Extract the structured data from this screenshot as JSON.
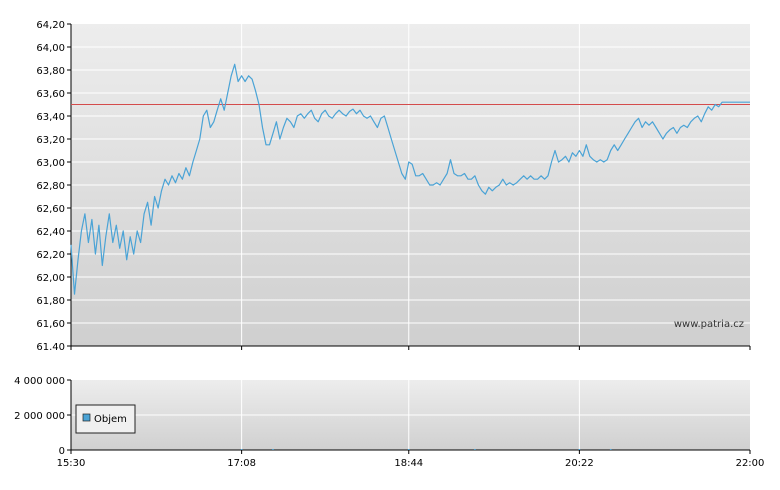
{
  "watermark": "www.patria.cz",
  "chart_data": [
    {
      "type": "line",
      "name": "price",
      "x_ticks": [
        "15:30",
        "17:08",
        "18:44",
        "20:22",
        "22:00"
      ],
      "x_range": [
        "15:30",
        "22:00"
      ],
      "ylim": [
        61.4,
        64.2
      ],
      "y_ticks": [
        "64,20",
        "64,00",
        "63,80",
        "63,60",
        "63,40",
        "63,20",
        "63,00",
        "62,80",
        "62,60",
        "62,40",
        "62,20",
        "62,00",
        "61,80",
        "61,60",
        "61.40"
      ],
      "reference_line": {
        "value": 63.5,
        "color": "#d44c4c"
      },
      "series_color": "#4aa3d6",
      "grid": true,
      "points": [
        [
          "15:30",
          62.28
        ],
        [
          "15:32",
          61.85
        ],
        [
          "15:34",
          62.15
        ],
        [
          "15:36",
          62.4
        ],
        [
          "15:38",
          62.55
        ],
        [
          "15:40",
          62.3
        ],
        [
          "15:42",
          62.5
        ],
        [
          "15:44",
          62.2
        ],
        [
          "15:46",
          62.45
        ],
        [
          "15:48",
          62.1
        ],
        [
          "15:50",
          62.35
        ],
        [
          "15:52",
          62.55
        ],
        [
          "15:54",
          62.3
        ],
        [
          "15:56",
          62.45
        ],
        [
          "15:58",
          62.25
        ],
        [
          "16:00",
          62.4
        ],
        [
          "16:02",
          62.15
        ],
        [
          "16:04",
          62.35
        ],
        [
          "16:06",
          62.2
        ],
        [
          "16:08",
          62.4
        ],
        [
          "16:10",
          62.3
        ],
        [
          "16:12",
          62.55
        ],
        [
          "16:14",
          62.65
        ],
        [
          "16:16",
          62.45
        ],
        [
          "16:18",
          62.7
        ],
        [
          "16:20",
          62.6
        ],
        [
          "16:22",
          62.75
        ],
        [
          "16:24",
          62.85
        ],
        [
          "16:26",
          62.8
        ],
        [
          "16:28",
          62.88
        ],
        [
          "16:30",
          62.82
        ],
        [
          "16:32",
          62.9
        ],
        [
          "16:34",
          62.85
        ],
        [
          "16:36",
          62.95
        ],
        [
          "16:38",
          62.88
        ],
        [
          "16:40",
          63.0
        ],
        [
          "16:42",
          63.1
        ],
        [
          "16:44",
          63.2
        ],
        [
          "16:46",
          63.4
        ],
        [
          "16:48",
          63.45
        ],
        [
          "16:50",
          63.3
        ],
        [
          "16:52",
          63.35
        ],
        [
          "16:54",
          63.45
        ],
        [
          "16:56",
          63.55
        ],
        [
          "16:58",
          63.45
        ],
        [
          "17:00",
          63.6
        ],
        [
          "17:02",
          63.75
        ],
        [
          "17:04",
          63.85
        ],
        [
          "17:06",
          63.7
        ],
        [
          "17:08",
          63.75
        ],
        [
          "17:10",
          63.7
        ],
        [
          "17:12",
          63.75
        ],
        [
          "17:14",
          63.72
        ],
        [
          "17:16",
          63.62
        ],
        [
          "17:18",
          63.5
        ],
        [
          "17:20",
          63.3
        ],
        [
          "17:22",
          63.15
        ],
        [
          "17:24",
          63.15
        ],
        [
          "17:26",
          63.25
        ],
        [
          "17:28",
          63.35
        ],
        [
          "17:30",
          63.2
        ],
        [
          "17:32",
          63.3
        ],
        [
          "17:34",
          63.38
        ],
        [
          "17:36",
          63.35
        ],
        [
          "17:38",
          63.3
        ],
        [
          "17:40",
          63.4
        ],
        [
          "17:42",
          63.42
        ],
        [
          "17:44",
          63.38
        ],
        [
          "17:46",
          63.42
        ],
        [
          "17:48",
          63.45
        ],
        [
          "17:50",
          63.38
        ],
        [
          "17:52",
          63.35
        ],
        [
          "17:54",
          63.42
        ],
        [
          "17:56",
          63.45
        ],
        [
          "17:58",
          63.4
        ],
        [
          "18:00",
          63.38
        ],
        [
          "18:02",
          63.42
        ],
        [
          "18:04",
          63.45
        ],
        [
          "18:06",
          63.42
        ],
        [
          "18:08",
          63.4
        ],
        [
          "18:10",
          63.44
        ],
        [
          "18:12",
          63.46
        ],
        [
          "18:14",
          63.42
        ],
        [
          "18:16",
          63.45
        ],
        [
          "18:18",
          63.4
        ],
        [
          "18:20",
          63.38
        ],
        [
          "18:22",
          63.4
        ],
        [
          "18:24",
          63.35
        ],
        [
          "18:26",
          63.3
        ],
        [
          "18:28",
          63.38
        ],
        [
          "18:30",
          63.4
        ],
        [
          "18:32",
          63.3
        ],
        [
          "18:34",
          63.2
        ],
        [
          "18:36",
          63.1
        ],
        [
          "18:38",
          63.0
        ],
        [
          "18:40",
          62.9
        ],
        [
          "18:42",
          62.85
        ],
        [
          "18:44",
          63.0
        ],
        [
          "18:46",
          62.98
        ],
        [
          "18:48",
          62.88
        ],
        [
          "18:50",
          62.88
        ],
        [
          "18:52",
          62.9
        ],
        [
          "18:54",
          62.85
        ],
        [
          "18:56",
          62.8
        ],
        [
          "18:58",
          62.8
        ],
        [
          "19:00",
          62.82
        ],
        [
          "19:02",
          62.8
        ],
        [
          "19:04",
          62.85
        ],
        [
          "19:06",
          62.9
        ],
        [
          "19:08",
          63.02
        ],
        [
          "19:10",
          62.9
        ],
        [
          "19:12",
          62.88
        ],
        [
          "19:14",
          62.88
        ],
        [
          "19:16",
          62.9
        ],
        [
          "19:18",
          62.85
        ],
        [
          "19:20",
          62.85
        ],
        [
          "19:22",
          62.88
        ],
        [
          "19:24",
          62.8
        ],
        [
          "19:26",
          62.75
        ],
        [
          "19:28",
          62.72
        ],
        [
          "19:30",
          62.78
        ],
        [
          "19:32",
          62.75
        ],
        [
          "19:34",
          62.78
        ],
        [
          "19:36",
          62.8
        ],
        [
          "19:38",
          62.85
        ],
        [
          "19:40",
          62.8
        ],
        [
          "19:42",
          62.82
        ],
        [
          "19:44",
          62.8
        ],
        [
          "19:46",
          62.82
        ],
        [
          "19:48",
          62.85
        ],
        [
          "19:50",
          62.88
        ],
        [
          "19:52",
          62.85
        ],
        [
          "19:54",
          62.88
        ],
        [
          "19:56",
          62.85
        ],
        [
          "19:58",
          62.85
        ],
        [
          "20:00",
          62.88
        ],
        [
          "20:02",
          62.85
        ],
        [
          "20:04",
          62.88
        ],
        [
          "20:06",
          63.0
        ],
        [
          "20:08",
          63.1
        ],
        [
          "20:10",
          63.0
        ],
        [
          "20:12",
          63.02
        ],
        [
          "20:14",
          63.05
        ],
        [
          "20:16",
          63.0
        ],
        [
          "20:18",
          63.08
        ],
        [
          "20:20",
          63.05
        ],
        [
          "20:22",
          63.1
        ],
        [
          "20:24",
          63.05
        ],
        [
          "20:26",
          63.15
        ],
        [
          "20:28",
          63.05
        ],
        [
          "20:30",
          63.02
        ],
        [
          "20:32",
          63.0
        ],
        [
          "20:34",
          63.02
        ],
        [
          "20:36",
          63.0
        ],
        [
          "20:38",
          63.02
        ],
        [
          "20:40",
          63.1
        ],
        [
          "20:42",
          63.15
        ],
        [
          "20:44",
          63.1
        ],
        [
          "20:46",
          63.15
        ],
        [
          "20:48",
          63.2
        ],
        [
          "20:50",
          63.25
        ],
        [
          "20:52",
          63.3
        ],
        [
          "20:54",
          63.35
        ],
        [
          "20:56",
          63.38
        ],
        [
          "20:58",
          63.3
        ],
        [
          "21:00",
          63.35
        ],
        [
          "21:02",
          63.32
        ],
        [
          "21:04",
          63.35
        ],
        [
          "21:06",
          63.3
        ],
        [
          "21:08",
          63.25
        ],
        [
          "21:10",
          63.2
        ],
        [
          "21:12",
          63.25
        ],
        [
          "21:14",
          63.28
        ],
        [
          "21:16",
          63.3
        ],
        [
          "21:18",
          63.25
        ],
        [
          "21:20",
          63.3
        ],
        [
          "21:22",
          63.32
        ],
        [
          "21:24",
          63.3
        ],
        [
          "21:26",
          63.35
        ],
        [
          "21:28",
          63.38
        ],
        [
          "21:30",
          63.4
        ],
        [
          "21:32",
          63.35
        ],
        [
          "21:34",
          63.42
        ],
        [
          "21:36",
          63.48
        ],
        [
          "21:38",
          63.45
        ],
        [
          "21:40",
          63.5
        ],
        [
          "21:42",
          63.48
        ],
        [
          "21:44",
          63.52
        ],
        [
          "22:00",
          63.52
        ]
      ]
    },
    {
      "type": "bar",
      "name": "volume",
      "x_ticks": [
        "15:30",
        "17:08",
        "18:44",
        "20:22",
        "22:00"
      ],
      "ylim": [
        0,
        4000000
      ],
      "y_ticks": [
        "4 000 000",
        "2 000 000",
        "0"
      ],
      "legend": [
        "Objem"
      ],
      "legend_position": "left",
      "bar_color": "#4aa3d6",
      "grid": true,
      "points": [
        [
          "17:08",
          12000
        ],
        [
          "17:26",
          9000
        ],
        [
          "18:44",
          8000
        ],
        [
          "19:22",
          7000
        ],
        [
          "20:22",
          10000
        ],
        [
          "20:40",
          6000
        ]
      ]
    }
  ]
}
